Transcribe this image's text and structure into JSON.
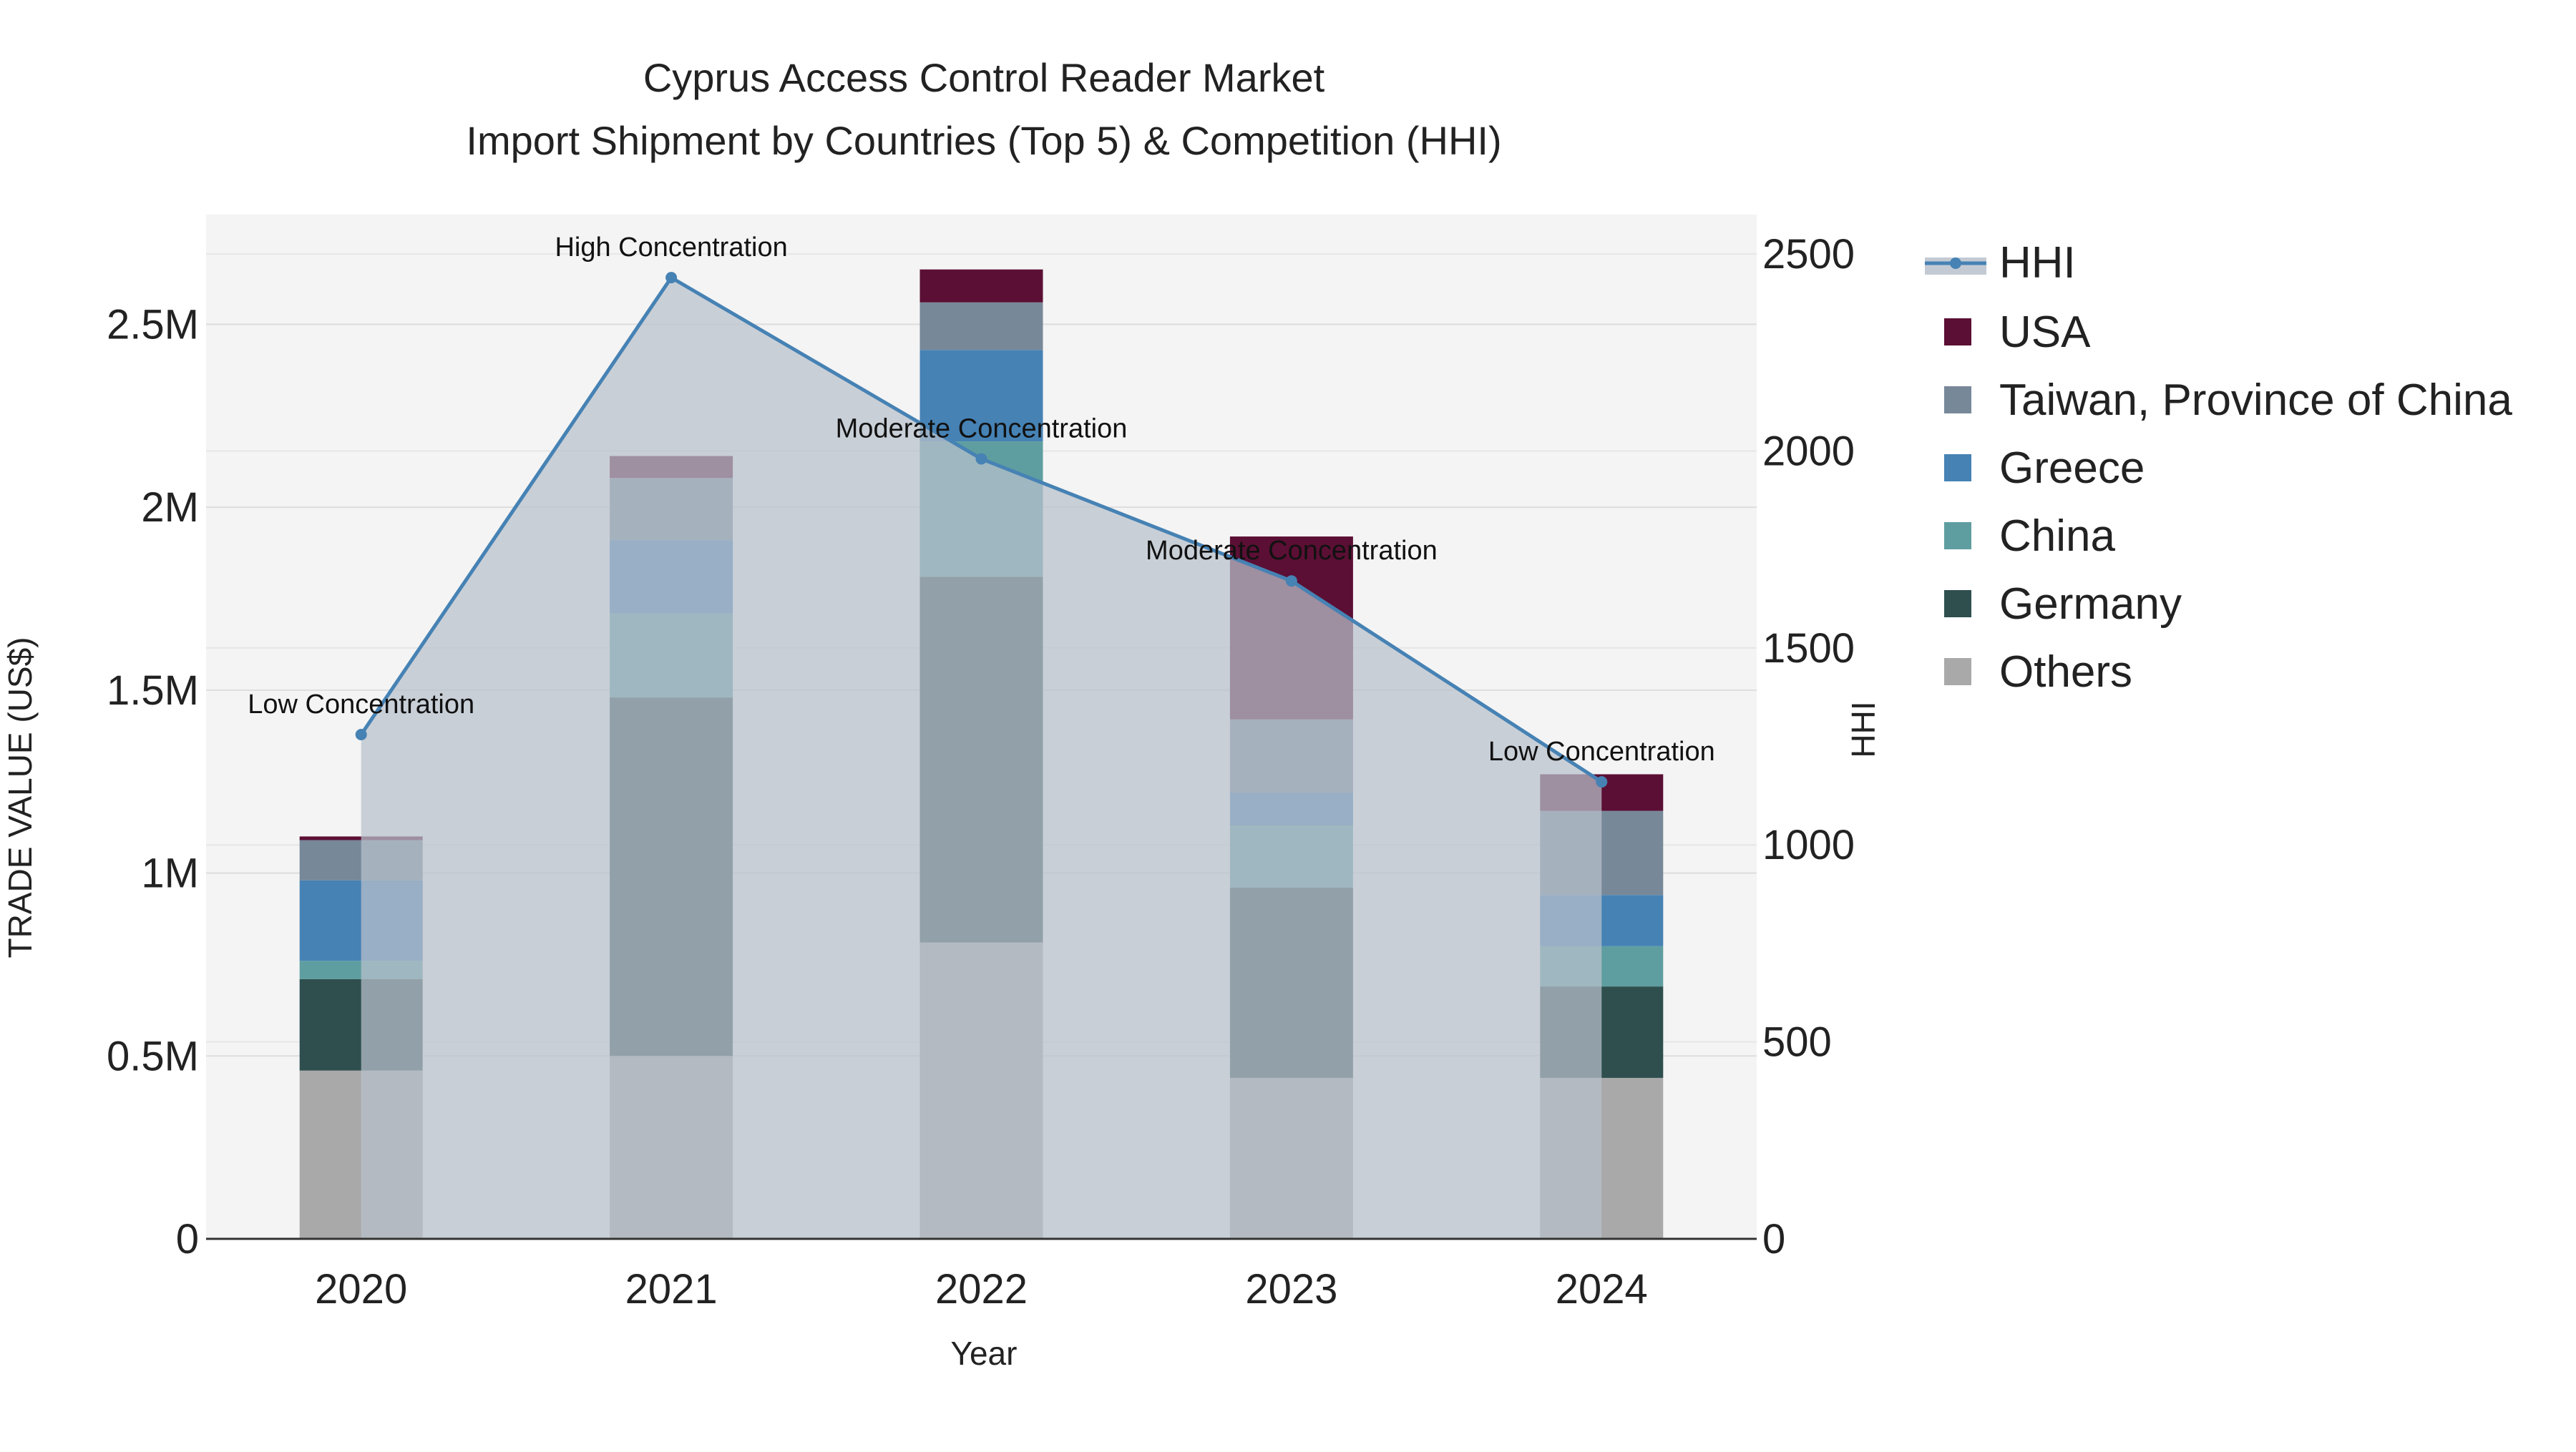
{
  "chart_data": {
    "type": "bar",
    "title": "Cyprus Access Control Reader Market",
    "subtitle": "Import Shipment by Countries (Top 5) & Competition (HHI)",
    "xlabel": "Year",
    "ylabel": "TRADE VALUE (US$)",
    "y2label": "HHI",
    "categories": [
      "2020",
      "2021",
      "2022",
      "2023",
      "2024"
    ],
    "ylim": [
      0,
      2800000
    ],
    "y2lim": [
      0,
      2600
    ],
    "yticks": [
      {
        "value": 0,
        "label": "0"
      },
      {
        "value": 500000,
        "label": "0.5M"
      },
      {
        "value": 1000000,
        "label": "1M"
      },
      {
        "value": 1500000,
        "label": "1.5M"
      },
      {
        "value": 2000000,
        "label": "2M"
      },
      {
        "value": 2500000,
        "label": "2.5M"
      }
    ],
    "y2ticks": [
      {
        "value": 0,
        "label": "0"
      },
      {
        "value": 500,
        "label": "500"
      },
      {
        "value": 1000,
        "label": "1000"
      },
      {
        "value": 1500,
        "label": "1500"
      },
      {
        "value": 2000,
        "label": "2000"
      },
      {
        "value": 2500,
        "label": "2500"
      }
    ],
    "series": [
      {
        "name": "Others",
        "color": "#a9a9a9",
        "values": [
          460000,
          500000,
          810000,
          440000,
          440000
        ]
      },
      {
        "name": "Germany",
        "color": "#2f4f4f",
        "values": [
          250000,
          980000,
          1000000,
          520000,
          250000
        ]
      },
      {
        "name": "China",
        "color": "#5f9ea0",
        "values": [
          50000,
          230000,
          370000,
          170000,
          110000
        ]
      },
      {
        "name": "Greece",
        "color": "#4682b4",
        "values": [
          220000,
          200000,
          250000,
          90000,
          140000
        ]
      },
      {
        "name": "Taiwan, Province of China",
        "color": "#778899",
        "values": [
          110000,
          170000,
          130000,
          200000,
          230000
        ]
      },
      {
        "name": "USA",
        "color": "#5b0f34",
        "values": [
          10000,
          60000,
          90000,
          500000,
          100000
        ]
      }
    ],
    "hhi": {
      "name": "HHI",
      "color": "#4682b4",
      "values": [
        1280,
        2440,
        1980,
        1670,
        1160
      ],
      "annotations": [
        "Low Concentration",
        "High Concentration",
        "Moderate Concentration",
        "Moderate Concentration",
        "Low Concentration"
      ]
    },
    "legend_position": "right"
  }
}
